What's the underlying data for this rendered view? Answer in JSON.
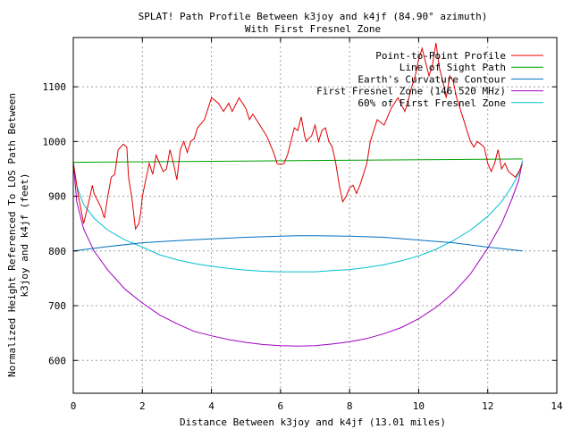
{
  "chart_data": {
    "type": "line",
    "title_line1": "SPLAT! Path Profile Between k3joy and k4jf (84.90° azimuth)",
    "title_line2": "With First Fresnel Zone",
    "xlabel": "Distance Between k3joy and k4jf (13.01 miles)",
    "ylabel_line1": "Normalized Height Referenced To LOS Path Between",
    "ylabel_line2": "k3joy and k4jf (feet)",
    "xlim": [
      0,
      14
    ],
    "ylim": [
      540,
      1190
    ],
    "x_ticks": [
      0,
      2,
      4,
      6,
      8,
      10,
      12,
      14
    ],
    "y_ticks": [
      600,
      700,
      800,
      900,
      1000,
      1100
    ],
    "grid": true,
    "legend_position": "top-right",
    "series": [
      {
        "name": "Point-to-Point Profile",
        "color": "#e00000",
        "x": [
          0,
          0.15,
          0.3,
          0.45,
          0.55,
          0.6,
          0.8,
          0.9,
          1.0,
          1.1,
          1.2,
          1.3,
          1.45,
          1.55,
          1.6,
          1.7,
          1.8,
          1.9,
          1.95,
          2.0,
          2.1,
          2.2,
          2.3,
          2.4,
          2.5,
          2.6,
          2.7,
          2.8,
          2.9,
          3.0,
          3.1,
          3.2,
          3.3,
          3.4,
          3.5,
          3.6,
          3.8,
          4.0,
          4.2,
          4.35,
          4.5,
          4.6,
          4.8,
          5.0,
          5.1,
          5.2,
          5.4,
          5.6,
          5.8,
          5.9,
          6.0,
          6.1,
          6.2,
          6.3,
          6.4,
          6.5,
          6.6,
          6.7,
          6.75,
          6.8,
          6.9,
          7.0,
          7.1,
          7.2,
          7.3,
          7.4,
          7.5,
          7.6,
          7.7,
          7.8,
          7.9,
          8.0,
          8.1,
          8.2,
          8.3,
          8.4,
          8.5,
          8.6,
          8.8,
          9.0,
          9.2,
          9.4,
          9.6,
          9.7,
          9.8,
          9.9,
          10.0,
          10.1,
          10.2,
          10.3,
          10.4,
          10.5,
          10.6,
          10.7,
          10.8,
          10.9,
          11.0,
          11.1,
          11.2,
          11.3,
          11.4,
          11.5,
          11.6,
          11.7,
          11.8,
          11.9,
          12.0,
          12.1,
          12.2,
          12.3,
          12.4,
          12.5,
          12.6,
          12.7,
          12.8,
          12.9,
          13.0
        ],
        "values": [
          962,
          900,
          850,
          890,
          920,
          905,
          880,
          860,
          900,
          935,
          940,
          985,
          995,
          990,
          935,
          895,
          840,
          850,
          870,
          900,
          930,
          960,
          940,
          975,
          960,
          945,
          950,
          985,
          960,
          930,
          985,
          1000,
          980,
          1000,
          1005,
          1025,
          1040,
          1080,
          1070,
          1055,
          1070,
          1055,
          1080,
          1060,
          1040,
          1050,
          1030,
          1010,
          980,
          960,
          958,
          960,
          975,
          1000,
          1025,
          1020,
          1045,
          1010,
          1000,
          1005,
          1010,
          1030,
          1000,
          1020,
          1025,
          1000,
          990,
          960,
          920,
          890,
          900,
          915,
          920,
          905,
          920,
          940,
          960,
          1000,
          1040,
          1030,
          1060,
          1080,
          1055,
          1075,
          1100,
          1120,
          1150,
          1170,
          1145,
          1120,
          1140,
          1180,
          1135,
          1110,
          1080,
          1120,
          1110,
          1080,
          1060,
          1040,
          1020,
          1000,
          990,
          1000,
          995,
          990,
          960,
          945,
          960,
          985,
          950,
          960,
          945,
          940,
          935,
          945,
          958
        ]
      },
      {
        "name": "Line of Sight Path",
        "color": "#00a000",
        "x": [
          0,
          13.01
        ],
        "values": [
          962,
          968
        ]
      },
      {
        "name": "Earth's Curvature Contour",
        "color": "#0070c0",
        "x": [
          0,
          1,
          2,
          3,
          4,
          5,
          6,
          6.5,
          7,
          8,
          9,
          10,
          11,
          12,
          13.01
        ],
        "values": [
          800,
          808,
          815,
          819,
          822,
          825,
          827,
          828,
          828,
          827,
          825,
          820,
          815,
          807,
          800
        ]
      },
      {
        "name": "First Fresnel Zone (146.520 MHz)",
        "color": "#a000c0",
        "x": [
          0,
          0.1,
          0.3,
          0.6,
          1.0,
          1.5,
          2.0,
          2.5,
          3.0,
          3.5,
          4.0,
          4.5,
          5.0,
          5.5,
          6.0,
          6.5,
          7.0,
          7.5,
          8.0,
          8.5,
          9.0,
          9.5,
          10.0,
          10.5,
          11.0,
          11.5,
          12.0,
          12.4,
          12.7,
          12.9,
          13.01
        ],
        "values": [
          962,
          890,
          840,
          800,
          765,
          730,
          705,
          683,
          667,
          653,
          645,
          638,
          633,
          629,
          627,
          626,
          627,
          630,
          634,
          640,
          649,
          660,
          676,
          697,
          723,
          758,
          805,
          850,
          895,
          930,
          965
        ]
      },
      {
        "name": "60% of First Fresnel Zone",
        "color": "#00c0d0",
        "x": [
          0,
          0.1,
          0.3,
          0.6,
          1.0,
          1.5,
          2.0,
          2.5,
          3.0,
          3.5,
          4.0,
          4.5,
          5.0,
          5.5,
          6.0,
          6.5,
          7.0,
          7.5,
          8.0,
          8.5,
          9.0,
          9.5,
          10.0,
          10.5,
          11.0,
          11.5,
          12.0,
          12.4,
          12.7,
          12.9,
          13.01
        ],
        "values": [
          962,
          918,
          885,
          860,
          838,
          820,
          807,
          793,
          784,
          777,
          772,
          768,
          765,
          763,
          762,
          762,
          762,
          764,
          766,
          770,
          775,
          782,
          791,
          803,
          819,
          838,
          863,
          890,
          918,
          942,
          965
        ]
      }
    ]
  }
}
